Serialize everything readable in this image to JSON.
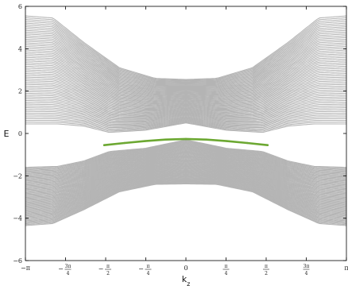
{
  "chart_data": {
    "type": "line",
    "title": "",
    "xlabel": "k",
    "xlabel_sub": "z",
    "ylabel": "E",
    "xlim": [
      -3.14159,
      3.14159
    ],
    "ylim": [
      -6,
      6
    ],
    "grid": false,
    "legend": "none",
    "x_ticks": [
      {
        "value": -3.14159,
        "label": "-π"
      },
      {
        "value": -2.35619,
        "num": "3π",
        "den": "4",
        "neg": true
      },
      {
        "value": -1.5708,
        "num": "π",
        "den": "2",
        "neg": true
      },
      {
        "value": -0.7854,
        "num": "π",
        "den": "4",
        "neg": true
      },
      {
        "value": 0,
        "label": "0"
      },
      {
        "value": 0.7854,
        "num": "π",
        "den": "4",
        "neg": false
      },
      {
        "value": 1.5708,
        "num": "π",
        "den": "2",
        "neg": false
      },
      {
        "value": 2.35619,
        "num": "3π",
        "den": "4",
        "neg": false
      },
      {
        "value": 3.14159,
        "label": "π"
      }
    ],
    "y_ticks": [
      -6,
      -4,
      -2,
      0,
      2,
      4,
      6
    ],
    "bands": {
      "color": "#b4b4b4",
      "count": 60,
      "upper_outer": [
        [
          -3.14159,
          5.55
        ],
        [
          -2.6,
          5.45
        ],
        [
          -2.0,
          4.3
        ],
        [
          -1.3,
          3.1
        ],
        [
          -0.6,
          2.6
        ],
        [
          0,
          2.55
        ],
        [
          0.6,
          2.6
        ],
        [
          1.3,
          3.1
        ],
        [
          2.0,
          4.3
        ],
        [
          2.6,
          5.45
        ],
        [
          3.14159,
          5.55
        ]
      ],
      "upper_inner": [
        [
          -3.14159,
          0.45
        ],
        [
          -2.5,
          0.45
        ],
        [
          -2.0,
          0.35
        ],
        [
          -1.5,
          0.05
        ],
        [
          -0.8,
          0.15
        ],
        [
          0,
          0.5
        ],
        [
          0.8,
          0.15
        ],
        [
          1.5,
          0.05
        ],
        [
          2.0,
          0.35
        ],
        [
          2.5,
          0.45
        ],
        [
          3.14159,
          0.45
        ]
      ],
      "lower_inner": [
        [
          -3.14159,
          -1.6
        ],
        [
          -2.5,
          -1.55
        ],
        [
          -2.0,
          -1.3
        ],
        [
          -1.5,
          -0.85
        ],
        [
          -0.8,
          -0.7
        ],
        [
          0,
          -0.3
        ],
        [
          0.8,
          -0.7
        ],
        [
          1.5,
          -0.85
        ],
        [
          2.0,
          -1.3
        ],
        [
          2.5,
          -1.55
        ],
        [
          3.14159,
          -1.6
        ]
      ],
      "lower_outer": [
        [
          -3.14159,
          -4.35
        ],
        [
          -2.6,
          -4.25
        ],
        [
          -2.0,
          -3.6
        ],
        [
          -1.3,
          -2.75
        ],
        [
          -0.6,
          -2.4
        ],
        [
          0,
          -2.38
        ],
        [
          0.6,
          -2.4
        ],
        [
          1.3,
          -2.75
        ],
        [
          2.0,
          -3.6
        ],
        [
          2.6,
          -4.25
        ],
        [
          3.14159,
          -4.35
        ]
      ]
    },
    "series": [
      {
        "color": "#6ca832",
        "x": [
          -1.6,
          -1.2,
          -0.8,
          -0.4,
          0,
          0.4,
          0.8,
          1.2,
          1.6
        ],
        "values": [
          -0.55,
          -0.45,
          -0.36,
          -0.29,
          -0.26,
          -0.29,
          -0.36,
          -0.45,
          -0.55
        ]
      }
    ]
  }
}
